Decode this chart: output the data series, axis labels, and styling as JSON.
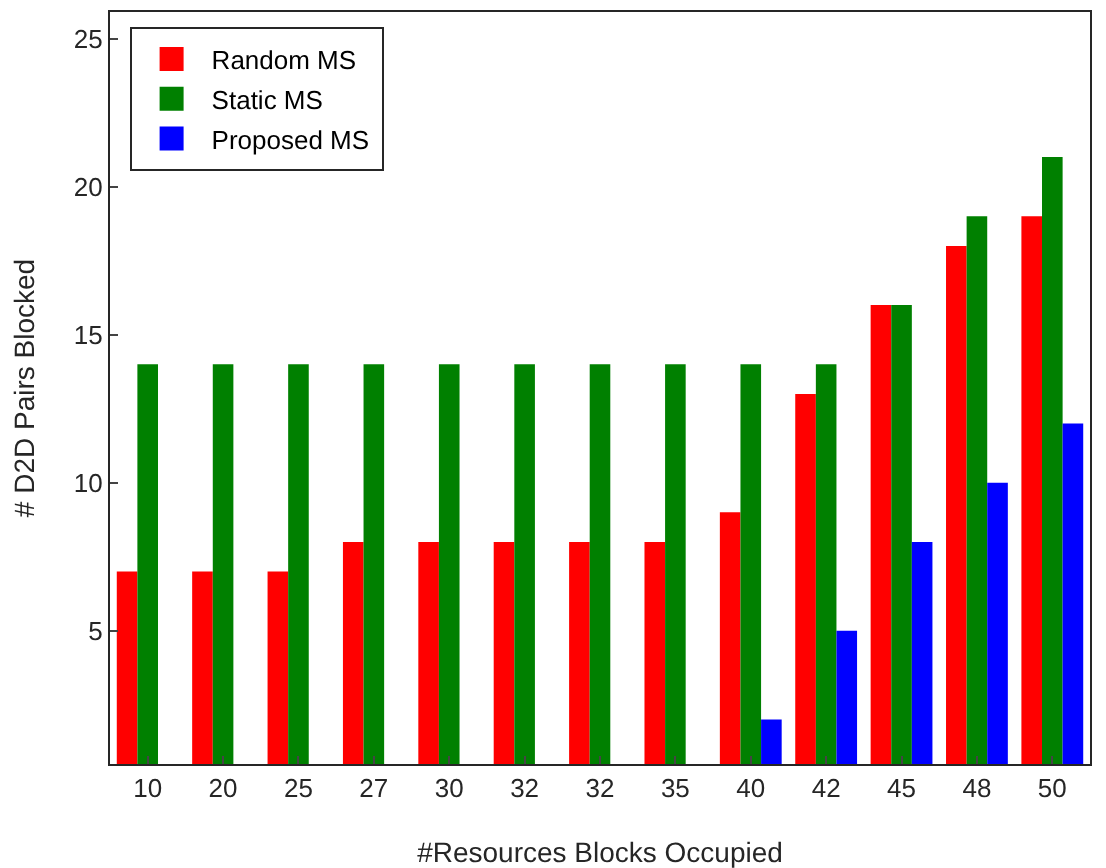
{
  "chart_data": {
    "type": "bar",
    "xlabel": "#Resources Blocks Occupied",
    "ylabel": "# D2D Pairs Blocked",
    "categories": [
      "10",
      "20",
      "25",
      "27",
      "30",
      "32",
      "32",
      "35",
      "40",
      "42",
      "45",
      "48",
      "50"
    ],
    "series": [
      {
        "name": "Random MS",
        "color": "#ff0000",
        "values": [
          7,
          7,
          7,
          8,
          8,
          8,
          8,
          8,
          9,
          13,
          16,
          18,
          19
        ]
      },
      {
        "name": "Static MS",
        "color": "#008000",
        "values": [
          14,
          14,
          14,
          14,
          14,
          14,
          14,
          14,
          14,
          14,
          16,
          19,
          21
        ]
      },
      {
        "name": "Proposed MS",
        "color": "#0000ff",
        "values": [
          null,
          null,
          null,
          null,
          null,
          null,
          null,
          null,
          2,
          5,
          8,
          10,
          12
        ]
      }
    ],
    "ylim": [
      0.5,
      25.9
    ],
    "yticks": [
      5,
      10,
      15,
      20,
      25
    ],
    "grid": false,
    "legend": "top left"
  }
}
